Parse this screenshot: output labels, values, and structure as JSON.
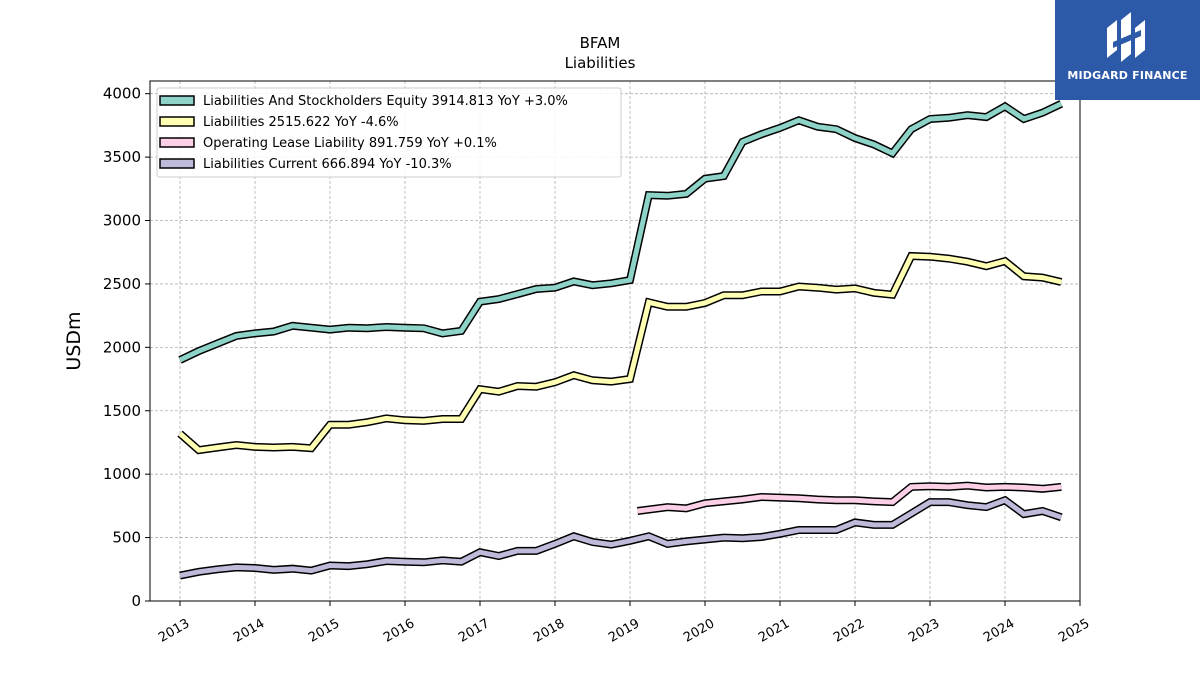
{
  "chart_data": {
    "type": "line",
    "title": "BFAM",
    "subtitle": "Liabilities",
    "xlabel": "",
    "ylabel": "USDm",
    "ylim": [
      0,
      4100
    ],
    "xlim": [
      2012.6,
      2025.0
    ],
    "y_ticks": [
      0,
      500,
      1000,
      1500,
      2000,
      2500,
      3000,
      3500,
      4000
    ],
    "x_ticks": [
      "2013",
      "2014",
      "2015",
      "2016",
      "2017",
      "2018",
      "2019",
      "2020",
      "2021",
      "2022",
      "2023",
      "2024",
      "2025"
    ],
    "grid": true,
    "legend_position": "top-left",
    "series": [
      {
        "name": "Liabilities And Stockholders Equity",
        "legend": "Liabilities And Stockholders Equity  3914.813 YoY +3.0%",
        "color": "#8dd3c7",
        "x": [
          2013.0,
          2013.25,
          2013.5,
          2013.75,
          2014.0,
          2014.25,
          2014.5,
          2014.75,
          2015.0,
          2015.25,
          2015.5,
          2015.75,
          2016.0,
          2016.25,
          2016.5,
          2016.75,
          2017.0,
          2017.25,
          2017.5,
          2017.75,
          2018.0,
          2018.25,
          2018.5,
          2018.75,
          2019.0,
          2019.25,
          2019.5,
          2019.75,
          2020.0,
          2020.25,
          2020.5,
          2020.75,
          2021.0,
          2021.25,
          2021.5,
          2021.75,
          2022.0,
          2022.25,
          2022.5,
          2022.75,
          2023.0,
          2023.25,
          2023.5,
          2023.75,
          2024.0,
          2024.25,
          2024.5,
          2024.75
        ],
        "y": [
          1900,
          1970,
          2030,
          2090,
          2110,
          2125,
          2170,
          2155,
          2140,
          2155,
          2150,
          2160,
          2155,
          2150,
          2110,
          2130,
          2360,
          2380,
          2420,
          2460,
          2470,
          2520,
          2490,
          2505,
          2530,
          3200,
          3195,
          3210,
          3330,
          3350,
          3620,
          3680,
          3730,
          3790,
          3740,
          3720,
          3650,
          3600,
          3530,
          3720,
          3800,
          3810,
          3830,
          3815,
          3900,
          3800,
          3850,
          3920
        ]
      },
      {
        "name": "Liabilities",
        "legend": "Liabilities  2515.622 YoY -4.6%",
        "color": "#ffffb3",
        "x": [
          2013.0,
          2013.25,
          2013.5,
          2013.75,
          2014.0,
          2014.25,
          2014.5,
          2014.75,
          2015.0,
          2015.25,
          2015.5,
          2015.75,
          2016.0,
          2016.25,
          2016.5,
          2016.75,
          2017.0,
          2017.25,
          2017.5,
          2017.75,
          2018.0,
          2018.25,
          2018.5,
          2018.75,
          2019.0,
          2019.25,
          2019.5,
          2019.75,
          2020.0,
          2020.25,
          2020.5,
          2020.75,
          2021.0,
          2021.25,
          2021.5,
          2021.75,
          2022.0,
          2022.25,
          2022.5,
          2022.75,
          2023.0,
          2023.25,
          2023.5,
          2023.75,
          2024.0,
          2024.25,
          2024.5,
          2024.75
        ],
        "y": [
          1320,
          1190,
          1210,
          1230,
          1215,
          1210,
          1215,
          1205,
          1390,
          1390,
          1410,
          1440,
          1425,
          1420,
          1435,
          1435,
          1670,
          1650,
          1695,
          1690,
          1725,
          1780,
          1740,
          1730,
          1750,
          2355,
          2320,
          2320,
          2350,
          2410,
          2410,
          2440,
          2440,
          2480,
          2470,
          2455,
          2465,
          2430,
          2415,
          2720,
          2715,
          2700,
          2675,
          2640,
          2680,
          2560,
          2550,
          2515
        ]
      },
      {
        "name": "Operating Lease Liability",
        "legend": "Operating Lease Liability  891.759 YoY +0.1%",
        "color": "#fbcfe6",
        "x": [
          2019.1,
          2019.5,
          2019.75,
          2020.0,
          2020.25,
          2020.5,
          2020.75,
          2021.0,
          2021.25,
          2021.5,
          2021.75,
          2022.0,
          2022.25,
          2022.5,
          2022.75,
          2023.0,
          2023.25,
          2023.5,
          2023.75,
          2024.0,
          2024.25,
          2024.5,
          2024.75
        ],
        "y": [
          710,
          740,
          730,
          770,
          785,
          800,
          820,
          815,
          810,
          800,
          795,
          795,
          785,
          780,
          900,
          905,
          900,
          910,
          895,
          900,
          895,
          885,
          900
        ]
      },
      {
        "name": "Liabilities Current",
        "legend": "Liabilities Current  666.894 YoY -10.3%",
        "color": "#bebada",
        "x": [
          2013.0,
          2013.25,
          2013.5,
          2013.75,
          2014.0,
          2014.25,
          2014.5,
          2014.75,
          2015.0,
          2015.25,
          2015.5,
          2015.75,
          2016.0,
          2016.25,
          2016.5,
          2016.75,
          2017.0,
          2017.25,
          2017.5,
          2017.75,
          2018.0,
          2018.25,
          2018.5,
          2018.75,
          2019.0,
          2019.25,
          2019.5,
          2019.75,
          2020.0,
          2020.25,
          2020.5,
          2020.75,
          2021.0,
          2021.25,
          2021.5,
          2021.75,
          2022.0,
          2022.25,
          2022.5,
          2022.75,
          2023.0,
          2023.25,
          2023.5,
          2023.75,
          2024.0,
          2024.25,
          2024.5,
          2024.75
        ],
        "y": [
          200,
          230,
          250,
          265,
          260,
          245,
          255,
          240,
          280,
          275,
          290,
          315,
          310,
          305,
          320,
          310,
          385,
          355,
          395,
          395,
          450,
          510,
          465,
          445,
          475,
          510,
          450,
          470,
          485,
          500,
          495,
          505,
          530,
          560,
          560,
          560,
          620,
          600,
          600,
          690,
          780,
          780,
          755,
          740,
          795,
          685,
          710,
          660
        ]
      }
    ]
  },
  "logo": {
    "text": "MIDGARD FINANCE",
    "icon": "midgard-logo-icon"
  }
}
